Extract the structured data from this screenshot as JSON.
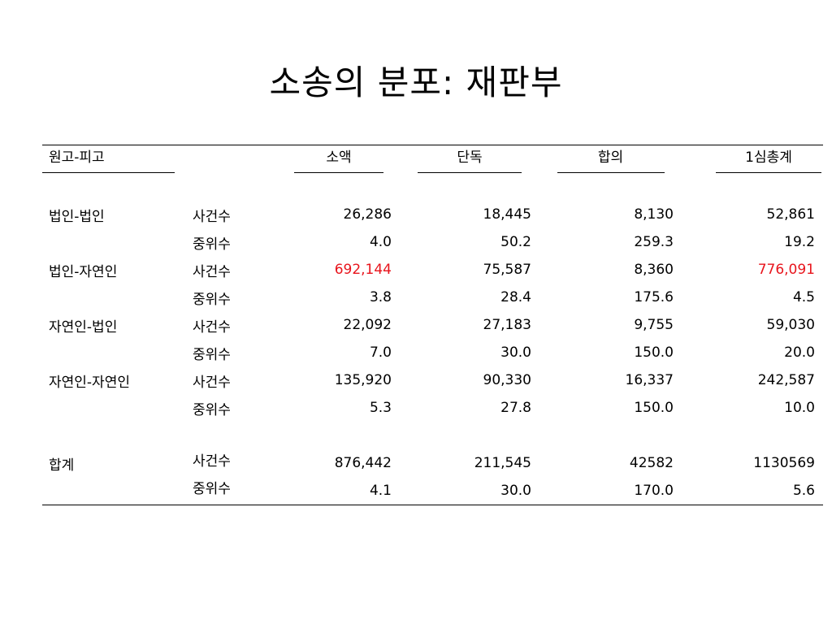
{
  "title": "소송의 분포: 재판부",
  "table": {
    "columns": [
      "원고-피고",
      "소액",
      "단독",
      "합의",
      "1심총계"
    ],
    "groups": [
      {
        "label": "법인-법인",
        "rows": [
          {
            "type": "사건수",
            "values": [
              "26,286",
              "18,445",
              "8,130",
              "52,861"
            ]
          },
          {
            "type": "중위수",
            "values": [
              "4.0",
              "50.2",
              "259.3",
              "19.2"
            ]
          }
        ]
      },
      {
        "label": "법인-자연인",
        "rows": [
          {
            "type": "사건수",
            "values": [
              "692,144",
              "75,587",
              "8,360",
              "776,091"
            ]
          },
          {
            "type": "중위수",
            "values": [
              "3.8",
              "28.4",
              "175.6",
              "4.5"
            ]
          }
        ]
      },
      {
        "label": "자연인-법인",
        "rows": [
          {
            "type": "사건수",
            "values": [
              "22,092",
              "27,183",
              "9,755",
              "59,030"
            ]
          },
          {
            "type": "중위수",
            "values": [
              "7.0",
              "30.0",
              "150.0",
              "20.0"
            ]
          }
        ]
      },
      {
        "label": "자연인-자연인",
        "rows": [
          {
            "type": "사건수",
            "values": [
              "135,920",
              "90,330",
              "16,337",
              "242,587"
            ]
          },
          {
            "type": "중위수",
            "values": [
              "5.3",
              "27.8",
              "150.0",
              "10.0"
            ]
          }
        ]
      },
      {
        "label": "합계",
        "rows": [
          {
            "type": "사건수",
            "values": [
              "876,442",
              "211,545",
              "42582",
              "1130569"
            ]
          },
          {
            "type": "중위수",
            "values": [
              "4.1",
              "30.0",
              "170.0",
              "5.6"
            ]
          }
        ]
      }
    ],
    "highlight_color": "#e8141c"
  }
}
